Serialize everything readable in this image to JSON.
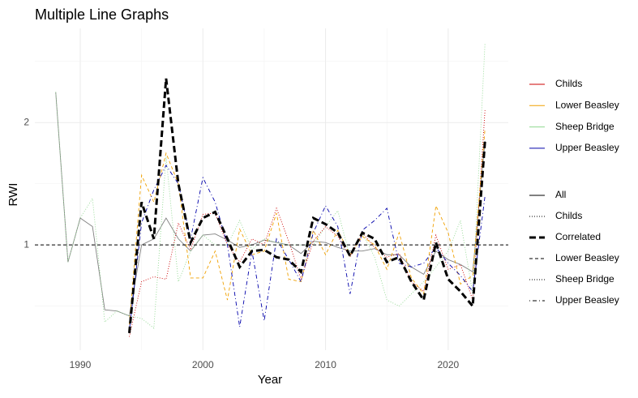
{
  "chart_data": {
    "type": "line",
    "title": "Multiple Line Graphs",
    "x_label": "Year",
    "y_label": "RWI",
    "x": [
      1988,
      1989,
      1990,
      1991,
      1992,
      1993,
      1994,
      1995,
      1996,
      1997,
      1998,
      1999,
      2000,
      2001,
      2002,
      2003,
      2004,
      2005,
      2006,
      2007,
      2008,
      2009,
      2010,
      2011,
      2012,
      2013,
      2014,
      2015,
      2016,
      2017,
      2018,
      2019,
      2020,
      2021,
      2022,
      2023
    ],
    "xlim": [
      1986.3,
      2024.9
    ],
    "xticks": [
      1990,
      2000,
      2010,
      2020
    ],
    "xminor": [
      1995,
      2005,
      2015
    ],
    "ylim": [
      0.14,
      2.77
    ],
    "yticks": [
      1,
      2
    ],
    "yminor": [
      0.5,
      1.5,
      2.5
    ],
    "grid": true,
    "hline": 1,
    "series": [
      {
        "name": "All",
        "color": "#808080",
        "linetype": "solid",
        "width": 0.9,
        "values": [
          2.25,
          0.86,
          1.22,
          1.15,
          0.47,
          0.46,
          0.42,
          1.0,
          1.05,
          1.22,
          1.05,
          0.95,
          1.08,
          1.09,
          1.04,
          0.98,
          1.0,
          1.04,
          1.02,
          1.0,
          0.93,
          1.03,
          1.02,
          0.98,
          0.95,
          0.95,
          0.97,
          0.92,
          0.92,
          0.82,
          0.76,
          0.95,
          0.88,
          0.84,
          0.78,
          1.85
        ]
      },
      {
        "name": "Sheep Bridge",
        "color": "#90d890",
        "linetype": "dotted",
        "width": 0.9,
        "values": [
          2.25,
          0.86,
          1.22,
          1.38,
          0.37,
          0.46,
          0.42,
          0.4,
          0.32,
          1.72,
          0.7,
          0.95,
          1.08,
          1.0,
          1.0,
          1.2,
          0.96,
          1.05,
          1.02,
          1.0,
          1.0,
          1.0,
          1.15,
          1.28,
          0.9,
          1.1,
          0.9,
          0.55,
          0.5,
          0.6,
          0.7,
          0.82,
          0.95,
          1.2,
          0.6,
          2.65
        ]
      },
      {
        "name": "Childs",
        "color": "#cc0000",
        "linetype": "dotted",
        "width": 0.9,
        "values": [
          null,
          null,
          null,
          null,
          null,
          null,
          0.25,
          0.7,
          0.74,
          0.72,
          1.18,
          0.96,
          1.25,
          1.26,
          1.0,
          0.86,
          1.05,
          1.0,
          1.3,
          1.03,
          0.72,
          1.03,
          1.15,
          1.07,
          0.9,
          1.1,
          0.98,
          0.9,
          0.93,
          0.7,
          0.62,
          1.08,
          0.8,
          0.84,
          0.55,
          2.1
        ]
      },
      {
        "name": "Lower Beasley",
        "color": "#f0a000",
        "linetype": "dashed",
        "width": 0.9,
        "values": [
          null,
          null,
          null,
          null,
          null,
          null,
          0.35,
          1.57,
          1.35,
          1.75,
          1.5,
          0.73,
          0.73,
          0.95,
          0.55,
          1.13,
          0.92,
          0.95,
          1.26,
          0.72,
          0.7,
          1.12,
          0.92,
          1.12,
          0.92,
          1.07,
          1.0,
          0.8,
          1.1,
          0.73,
          0.6,
          1.32,
          1.1,
          0.68,
          0.75,
          1.95
        ]
      },
      {
        "name": "Upper Beasley",
        "color": "#0000aa",
        "linetype": "dotdash",
        "width": 0.9,
        "values": [
          null,
          null,
          null,
          null,
          null,
          null,
          0.3,
          1.18,
          1.45,
          1.65,
          1.5,
          1.05,
          1.55,
          1.35,
          1.0,
          0.33,
          0.95,
          0.38,
          1.05,
          0.88,
          0.7,
          1.1,
          1.32,
          1.15,
          0.6,
          1.12,
          1.2,
          1.3,
          0.85,
          0.82,
          0.85,
          0.98,
          0.85,
          0.75,
          0.62,
          1.4
        ]
      },
      {
        "name": "Correlated",
        "color": "#000000",
        "linetype": "longdash",
        "width": 3,
        "values": [
          null,
          null,
          null,
          null,
          null,
          null,
          0.28,
          1.35,
          1.05,
          2.36,
          1.5,
          1.02,
          1.22,
          1.27,
          1.05,
          0.82,
          0.95,
          0.96,
          0.9,
          0.88,
          0.78,
          1.22,
          1.17,
          1.1,
          0.91,
          1.1,
          1.05,
          0.86,
          0.9,
          0.7,
          0.55,
          1.02,
          0.72,
          0.62,
          0.5,
          1.85
        ]
      }
    ],
    "color_legend": [
      {
        "name": "Childs",
        "color": "#cc0000"
      },
      {
        "name": "Lower Beasley",
        "color": "#f0a000"
      },
      {
        "name": "Sheep Bridge",
        "color": "#90d890"
      },
      {
        "name": "Upper Beasley",
        "color": "#0000aa"
      }
    ],
    "linetype_legend": [
      {
        "name": "All",
        "linetype": "solid"
      },
      {
        "name": "Childs",
        "linetype": "dotted"
      },
      {
        "name": "Correlated",
        "linetype": "longdash"
      },
      {
        "name": "Lower Beasley",
        "linetype": "dashed"
      },
      {
        "name": "Sheep Bridge",
        "linetype": "dotted"
      },
      {
        "name": "Upper Beasley",
        "linetype": "dotdash"
      }
    ]
  }
}
